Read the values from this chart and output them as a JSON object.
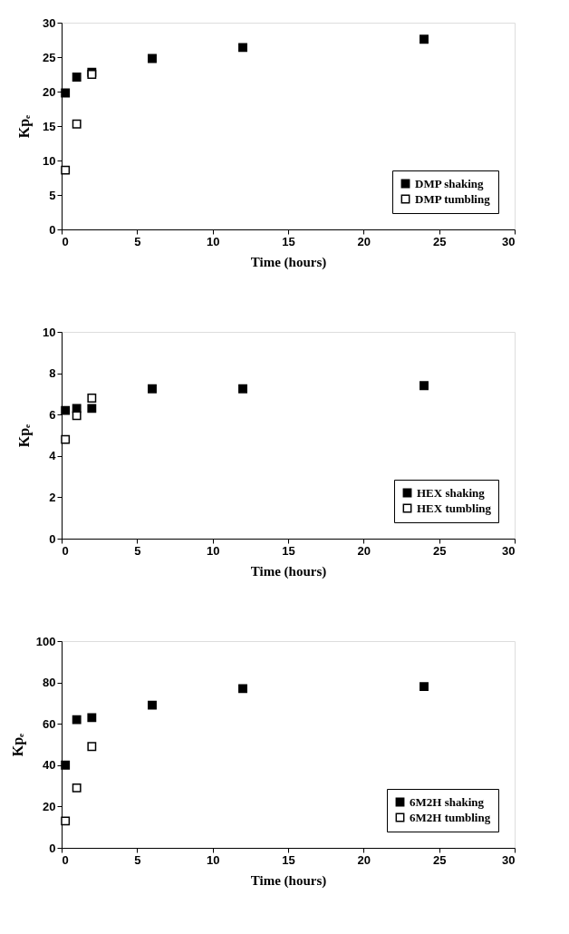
{
  "chart_data": [
    {
      "type": "scatter",
      "xlabel": "Time (hours)",
      "ylabel": "Kpₑ",
      "xlim": [
        0,
        30
      ],
      "xticks": [
        0,
        5,
        10,
        15,
        20,
        25,
        30
      ],
      "ylim": [
        0,
        30
      ],
      "yticks": [
        0,
        5,
        10,
        15,
        20,
        25,
        30
      ],
      "grid": false,
      "legend": "bottom right",
      "marker": "square",
      "series": [
        {
          "name": "DMP shaking",
          "color": "#000000",
          "x": [
            0.25,
            1,
            2,
            6,
            12,
            24
          ],
          "values": [
            19.8,
            22.1,
            22.8,
            24.8,
            26.4,
            27.6
          ]
        },
        {
          "name": "DMP tumbling",
          "color": "#ffffff",
          "x": [
            0.25,
            1,
            2
          ],
          "values": [
            8.6,
            15.3,
            22.5
          ]
        }
      ]
    },
    {
      "type": "scatter",
      "xlabel": "Time (hours)",
      "ylabel": "Kpₑ",
      "xlim": [
        0,
        30
      ],
      "xticks": [
        0,
        5,
        10,
        15,
        20,
        25,
        30
      ],
      "ylim": [
        0,
        10
      ],
      "yticks": [
        0,
        2,
        4,
        6,
        8,
        10
      ],
      "grid": false,
      "legend": "bottom right",
      "marker": "square",
      "series": [
        {
          "name": "HEX shaking",
          "color": "#000000",
          "x": [
            0.25,
            1,
            2,
            6,
            12,
            24
          ],
          "values": [
            6.2,
            6.3,
            6.3,
            7.25,
            7.25,
            7.4
          ]
        },
        {
          "name": "HEX tumbling",
          "color": "#ffffff",
          "x": [
            0.25,
            1,
            2
          ],
          "values": [
            4.8,
            5.95,
            6.8
          ]
        }
      ]
    },
    {
      "type": "scatter",
      "xlabel": "Time (hours)",
      "ylabel": "Kpₑ",
      "xlim": [
        0,
        30
      ],
      "xticks": [
        0,
        5,
        10,
        15,
        20,
        25,
        30
      ],
      "ylim": [
        0,
        100
      ],
      "yticks": [
        0,
        20,
        40,
        60,
        80,
        100
      ],
      "grid": false,
      "legend": "bottom right",
      "marker": "square",
      "series": [
        {
          "name": "6M2H shaking",
          "color": "#000000",
          "x": [
            0.25,
            1,
            2,
            6,
            12,
            24
          ],
          "values": [
            40,
            62,
            63,
            69,
            77,
            78
          ]
        },
        {
          "name": "6M2H tumbling",
          "color": "#ffffff",
          "x": [
            0.25,
            1,
            2
          ],
          "values": [
            13,
            29,
            49
          ]
        }
      ]
    }
  ]
}
